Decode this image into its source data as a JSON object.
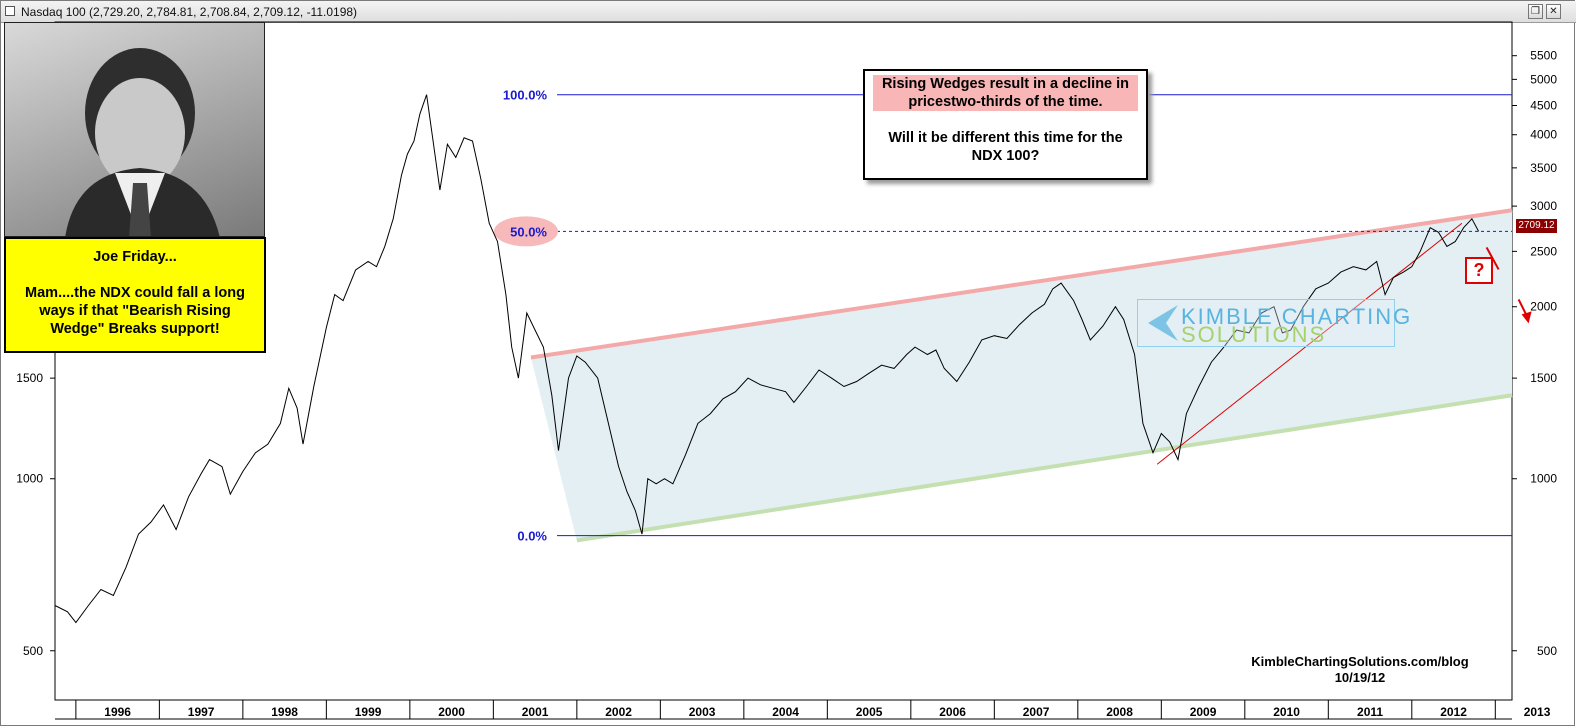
{
  "window": {
    "title": "Nasdaq 100 (2,729.20, 2,784.81, 2,708.84, 2,709.12, -11.0198)",
    "restore_icon": "restore-icon",
    "close_icon": "close-icon",
    "restore_glyph": "❐",
    "close_glyph": "✕"
  },
  "photo": {
    "description_icon": "portrait-photo"
  },
  "quote": {
    "line1": "Joe Friday...",
    "line2": "Mam....the NDX could fall a long ways if that \"Bearish Rising Wedge\" Breaks support!"
  },
  "callout": {
    "highlight": "Rising Wedges result in a decline in pricestwo-thirds of the time.",
    "question": "Will it be different this time for the NDX 100?"
  },
  "watermark": {
    "line1": "KIMBLE CHARTING",
    "line2": "SOLUTIONS"
  },
  "credit": {
    "site": "KimbleChartingSolutions.com/blog",
    "date": "10/19/12"
  },
  "price_tag": "2709.12",
  "question_box": "?",
  "colors": {
    "price_line": "#000000",
    "fib_line": "#1a1ad0",
    "wedge_top": "#f4a9a9",
    "wedge_bottom": "#c4e0b0",
    "wedge_fill": "#e3eff3",
    "support_line": "#e00000",
    "fib50_badge": "#f7b9b9",
    "quote_bg": "#ffff00",
    "price_tag_bg": "#8b0000"
  },
  "chart_data": {
    "type": "line",
    "title": "Nasdaq 100",
    "scale": "log",
    "ylim": [
      410,
      6300
    ],
    "xlim": [
      1995.75,
      2013.2
    ],
    "y_ticks": [
      500,
      1000,
      1500,
      2000,
      2500,
      3000,
      3500,
      4000,
      4500,
      5000,
      5500
    ],
    "x_ticks": [
      "1996",
      "1997",
      "1998",
      "1999",
      "2000",
      "2001",
      "2002",
      "2003",
      "2004",
      "2005",
      "2006",
      "2007",
      "2008",
      "2009",
      "2010",
      "2011",
      "2012",
      "2013"
    ],
    "fib_levels": [
      {
        "label": "100.0%",
        "value": 4700
      },
      {
        "label": "50.0%",
        "value": 2710
      },
      {
        "label": "0.0%",
        "value": 795
      }
    ],
    "wedge": {
      "top": [
        [
          2001.45,
          1630
        ],
        [
          2013.2,
          2950
        ]
      ],
      "bottom": [
        [
          2002.0,
          780
        ],
        [
          2013.2,
          1400
        ]
      ]
    },
    "support_line": [
      [
        2008.95,
        1060
      ],
      [
        2012.6,
        2800
      ]
    ],
    "series": [
      {
        "values": [
          [
            1995.75,
            600
          ],
          [
            1995.9,
            585
          ],
          [
            1996.0,
            560
          ],
          [
            1996.15,
            600
          ],
          [
            1996.3,
            640
          ],
          [
            1996.45,
            625
          ],
          [
            1996.6,
            700
          ],
          [
            1996.75,
            800
          ],
          [
            1996.9,
            840
          ],
          [
            1997.05,
            900
          ],
          [
            1997.2,
            815
          ],
          [
            1997.35,
            930
          ],
          [
            1997.5,
            1020
          ],
          [
            1997.6,
            1080
          ],
          [
            1997.75,
            1050
          ],
          [
            1997.85,
            940
          ],
          [
            1998.0,
            1030
          ],
          [
            1998.15,
            1110
          ],
          [
            1998.3,
            1150
          ],
          [
            1998.45,
            1250
          ],
          [
            1998.55,
            1440
          ],
          [
            1998.65,
            1330
          ],
          [
            1998.72,
            1150
          ],
          [
            1998.85,
            1450
          ],
          [
            1999.0,
            1840
          ],
          [
            1999.1,
            2100
          ],
          [
            1999.2,
            2050
          ],
          [
            1999.35,
            2320
          ],
          [
            1999.5,
            2400
          ],
          [
            1999.6,
            2350
          ],
          [
            1999.7,
            2550
          ],
          [
            1999.8,
            2850
          ],
          [
            1999.9,
            3400
          ],
          [
            1999.97,
            3700
          ],
          [
            2000.05,
            3900
          ],
          [
            2000.12,
            4350
          ],
          [
            2000.2,
            4700
          ],
          [
            2000.3,
            3700
          ],
          [
            2000.36,
            3200
          ],
          [
            2000.45,
            3850
          ],
          [
            2000.55,
            3650
          ],
          [
            2000.65,
            3950
          ],
          [
            2000.75,
            3900
          ],
          [
            2000.85,
            3350
          ],
          [
            2000.95,
            2800
          ],
          [
            2001.05,
            2600
          ],
          [
            2001.15,
            2100
          ],
          [
            2001.22,
            1700
          ],
          [
            2001.3,
            1500
          ],
          [
            2001.4,
            1950
          ],
          [
            2001.5,
            1820
          ],
          [
            2001.6,
            1700
          ],
          [
            2001.7,
            1400
          ],
          [
            2001.78,
            1120
          ],
          [
            2001.9,
            1500
          ],
          [
            2002.0,
            1640
          ],
          [
            2002.1,
            1600
          ],
          [
            2002.25,
            1500
          ],
          [
            2002.35,
            1300
          ],
          [
            2002.5,
            1050
          ],
          [
            2002.6,
            950
          ],
          [
            2002.7,
            880
          ],
          [
            2002.78,
            800
          ],
          [
            2002.85,
            1000
          ],
          [
            2002.95,
            980
          ],
          [
            2003.05,
            1000
          ],
          [
            2003.15,
            980
          ],
          [
            2003.3,
            1100
          ],
          [
            2003.45,
            1250
          ],
          [
            2003.6,
            1300
          ],
          [
            2003.75,
            1380
          ],
          [
            2003.9,
            1420
          ],
          [
            2004.05,
            1500
          ],
          [
            2004.2,
            1460
          ],
          [
            2004.35,
            1440
          ],
          [
            2004.5,
            1420
          ],
          [
            2004.6,
            1360
          ],
          [
            2004.75,
            1450
          ],
          [
            2004.9,
            1550
          ],
          [
            2005.05,
            1500
          ],
          [
            2005.2,
            1450
          ],
          [
            2005.35,
            1480
          ],
          [
            2005.5,
            1530
          ],
          [
            2005.65,
            1580
          ],
          [
            2005.8,
            1560
          ],
          [
            2005.95,
            1650
          ],
          [
            2006.05,
            1700
          ],
          [
            2006.2,
            1650
          ],
          [
            2006.3,
            1680
          ],
          [
            2006.4,
            1560
          ],
          [
            2006.55,
            1480
          ],
          [
            2006.7,
            1600
          ],
          [
            2006.85,
            1750
          ],
          [
            2007.0,
            1780
          ],
          [
            2007.15,
            1760
          ],
          [
            2007.3,
            1860
          ],
          [
            2007.45,
            1950
          ],
          [
            2007.6,
            2020
          ],
          [
            2007.7,
            2150
          ],
          [
            2007.8,
            2200
          ],
          [
            2007.95,
            2050
          ],
          [
            2008.05,
            1900
          ],
          [
            2008.15,
            1750
          ],
          [
            2008.3,
            1850
          ],
          [
            2008.45,
            2000
          ],
          [
            2008.55,
            1900
          ],
          [
            2008.68,
            1650
          ],
          [
            2008.78,
            1250
          ],
          [
            2008.9,
            1110
          ],
          [
            2009.0,
            1200
          ],
          [
            2009.1,
            1160
          ],
          [
            2009.2,
            1080
          ],
          [
            2009.3,
            1300
          ],
          [
            2009.45,
            1450
          ],
          [
            2009.6,
            1600
          ],
          [
            2009.75,
            1700
          ],
          [
            2009.9,
            1820
          ],
          [
            2010.05,
            1800
          ],
          [
            2010.2,
            1950
          ],
          [
            2010.35,
            2000
          ],
          [
            2010.45,
            1800
          ],
          [
            2010.55,
            1820
          ],
          [
            2010.7,
            2000
          ],
          [
            2010.85,
            2150
          ],
          [
            2011.0,
            2200
          ],
          [
            2011.15,
            2300
          ],
          [
            2011.3,
            2350
          ],
          [
            2011.45,
            2320
          ],
          [
            2011.58,
            2400
          ],
          [
            2011.68,
            2100
          ],
          [
            2011.78,
            2250
          ],
          [
            2011.9,
            2300
          ],
          [
            2012.0,
            2350
          ],
          [
            2012.1,
            2500
          ],
          [
            2012.22,
            2750
          ],
          [
            2012.32,
            2700
          ],
          [
            2012.42,
            2550
          ],
          [
            2012.52,
            2600
          ],
          [
            2012.62,
            2750
          ],
          [
            2012.72,
            2850
          ],
          [
            2012.8,
            2709
          ]
        ]
      }
    ]
  }
}
